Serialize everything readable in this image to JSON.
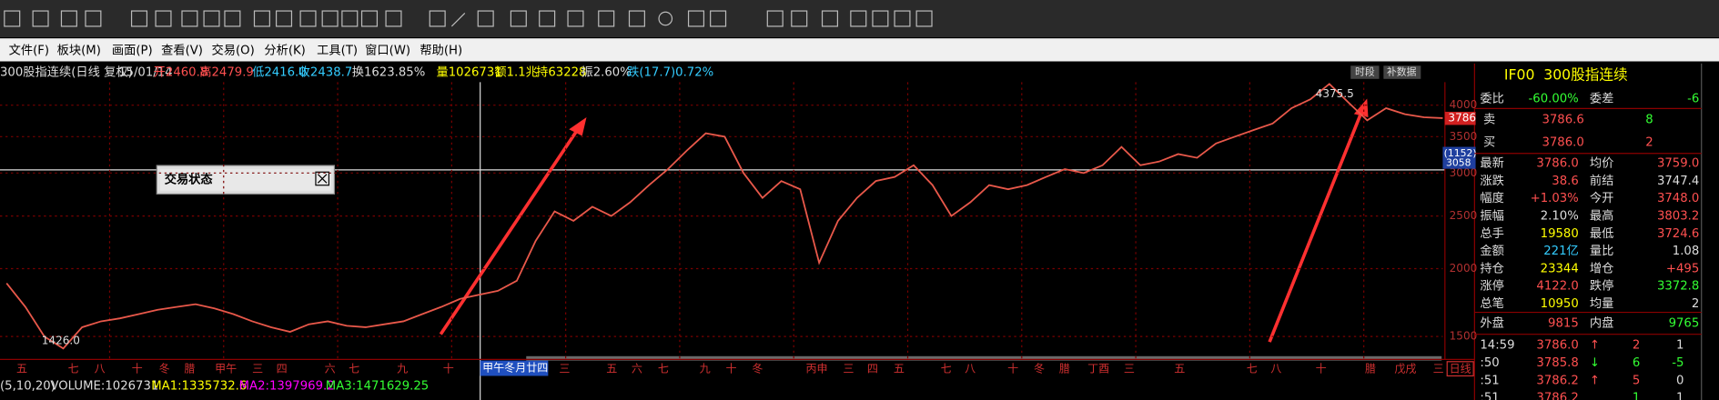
{
  "menu": [
    "文件(F)",
    "板块(M)",
    "画面(P)",
    "查看(V)",
    "交易(O)",
    "分析(K)",
    "工具(T)",
    "窗口(W)",
    "帮助(H)"
  ],
  "info_bar": [
    "300股指连续(日线 复权)",
    "15/01/14",
    "开2460.8",
    "高2479.9",
    "低2416.0",
    "收2438.7",
    "换1623.85%",
    "量1026731",
    "额1.1兆",
    "持63228",
    "振2.60%",
    "跌(17.7)0.72%"
  ],
  "chart_data": {
    "type": "line",
    "log_scale": true,
    "color": "#e8584a",
    "grid": true,
    "ylim": [
      1361,
      4409
    ],
    "yticks": [
      1500,
      2000,
      2500,
      3000,
      3500,
      4000
    ],
    "values": [
      1880,
      1700,
      1500,
      1426,
      1560,
      1600,
      1620,
      1650,
      1680,
      1700,
      1720,
      1690,
      1650,
      1600,
      1560,
      1530,
      1580,
      1600,
      1570,
      1560,
      1580,
      1600,
      1650,
      1700,
      1760,
      1790,
      1820,
      1900,
      2250,
      2550,
      2450,
      2600,
      2500,
      2650,
      2850,
      3050,
      3300,
      3550,
      3500,
      3000,
      2700,
      2900,
      2800,
      2050,
      2450,
      2700,
      2900,
      2950,
      3100,
      2850,
      2500,
      2650,
      2850,
      2800,
      2850,
      2950,
      3050,
      3000,
      3100,
      3350,
      3100,
      3150,
      3250,
      3200,
      3400,
      3500,
      3600,
      3700,
      3950,
      4100,
      4375.5,
      4050,
      3750,
      3950,
      3850,
      3800,
      3786
    ],
    "annotations": [
      "1426.0",
      "4375.5"
    ],
    "buttons": [
      "时段",
      "补数据"
    ],
    "price_tag": "3786",
    "crosshair_tags": [
      "(1152)",
      "3058"
    ],
    "x_labels": [
      "五",
      "七",
      "八",
      "十",
      "冬",
      "腊",
      "甲午",
      "三",
      "四",
      "六",
      "七",
      "九",
      "十",
      "三",
      "五",
      "六",
      "七",
      "九",
      "十",
      "冬",
      "丙申",
      "三",
      "四",
      "五",
      "七",
      "八",
      "十",
      "冬",
      "腊",
      "丁酉",
      "三",
      "五",
      "七",
      "八",
      "十",
      "腊",
      "戊戌",
      "三"
    ],
    "cursor_label": "甲午冬月廿四",
    "period": "日线"
  },
  "window": {
    "title": "交易状态"
  },
  "volume_bar": [
    "(5,10,20)",
    "VOLUME:1026731",
    "MA1:1335732.6",
    "MA2:1397969.2",
    "MA3:1471629.25"
  ],
  "quote": {
    "code": "IF00",
    "name": "300股指连续",
    "ratio": [
      "委比",
      "-60.00%",
      "委差",
      "-6"
    ],
    "sell": [
      "卖",
      "3786.6",
      "8"
    ],
    "buy": [
      "买",
      "3786.0",
      "2"
    ],
    "rows": [
      [
        "最新",
        "3786.0",
        "均价",
        "3759.0"
      ],
      [
        "涨跌",
        "38.6",
        "前结",
        "3747.4"
      ],
      [
        "幅度",
        "+1.03%",
        "今开",
        "3748.0"
      ],
      [
        "振幅",
        "2.10%",
        "最高",
        "3803.2"
      ],
      [
        "总手",
        "19580",
        "最低",
        "3724.6"
      ],
      [
        "金额",
        "221亿",
        "量比",
        "1.08"
      ],
      [
        "持仓",
        "23344",
        "增仓",
        "+495"
      ],
      [
        "涨停",
        "4122.0",
        "跌停",
        "3372.8"
      ],
      [
        "总笔",
        "10950",
        "均量",
        "2"
      ]
    ],
    "outer": [
      "外盘",
      "9815",
      "内盘",
      "9765"
    ],
    "ticks": [
      [
        "14:59",
        "3786.0",
        "↑",
        "2",
        "1"
      ],
      [
        ":50",
        "3785.8",
        "↓",
        "6",
        "-5"
      ],
      [
        ":51",
        "3786.2",
        "↑",
        "5",
        "0"
      ],
      [
        ":51",
        "3786.2",
        "",
        "1",
        "1"
      ]
    ]
  }
}
